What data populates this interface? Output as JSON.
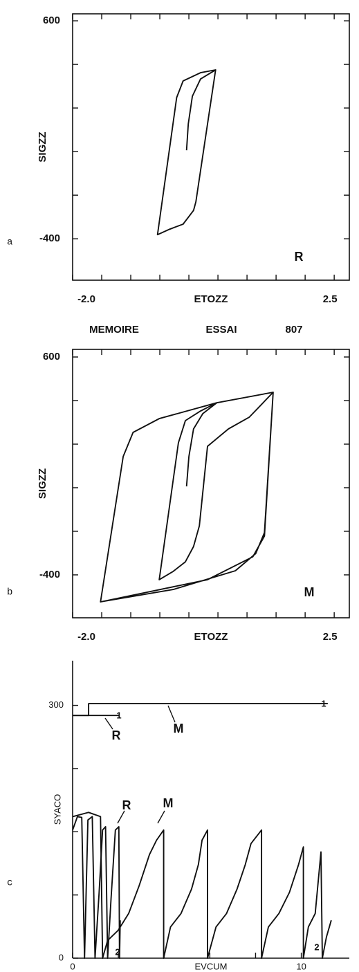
{
  "chart_data": [
    {
      "type": "line",
      "panel": "a",
      "y_label": "SIGZZ",
      "x_label": "ETOZZ",
      "xlim": [
        -2.0,
        2.76
      ],
      "ylim": [
        -590,
        632
      ],
      "xticks": [
        {
          "value": -2,
          "label": "-2.0"
        },
        2.5
      ],
      "x_minor_ticks": [
        -1.5,
        -1,
        -0.5,
        0,
        0.5,
        1,
        1.5,
        2
      ],
      "yticks": [
        -400,
        600
      ],
      "y_minor_ticks": [
        -200,
        0,
        200,
        400
      ],
      "annotations": [
        "R"
      ],
      "series": [
        {
          "color": "#111111",
          "x": [
            -0.04,
            -0.01,
            0.06,
            0.2,
            0.46,
            0.2,
            -0.1,
            -0.21,
            -0.54,
            -0.33,
            -0.1,
            0.08,
            0.12,
            0.46
          ],
          "values": [
            6,
            127,
            254,
            333,
            375,
            362,
            324,
            248,
            -381,
            -356,
            -333,
            -270,
            -230,
            375
          ]
        }
      ]
    },
    {
      "type": "line",
      "panel": "b",
      "title_parts": [
        "MEMOIRE",
        "ESSAI",
        "807"
      ],
      "y_label": "SIGZZ",
      "x_label": "ETOZZ",
      "xlim": [
        -2.0,
        2.76
      ],
      "ylim": [
        -597,
        635
      ],
      "xticks": [
        {
          "value": -2,
          "label": "-2.0"
        },
        2.5
      ],
      "x_minor_ticks": [
        -1.5,
        -1,
        -0.5,
        0,
        0.5,
        1,
        1.5,
        2
      ],
      "yticks": [
        -400,
        600
      ],
      "y_minor_ticks": [
        -200,
        0,
        200,
        400
      ],
      "annotations": [
        "M"
      ],
      "series": [
        {
          "color": "#111111",
          "x": [
            -0.04,
            0.0,
            0.08,
            0.24,
            0.48,
            0.2,
            -0.06,
            -0.18,
            -0.51,
            -0.27,
            -0.06,
            0.08,
            0.18,
            0.32,
            0.68,
            1.04,
            1.45,
            1.3,
            1.15,
            0.8,
            -0.27,
            -1.52,
            -1.13,
            -0.96,
            -0.51,
            0.48,
            1.45,
            1.3,
            1.1,
            0.32,
            -1.52
          ],
          "values": [
            6,
            143,
            270,
            340,
            390,
            352,
            308,
            206,
            -422,
            -384,
            -340,
            -270,
            -175,
            190,
            270,
            324,
            438,
            -206,
            -302,
            -381,
            -467,
            -524,
            143,
            254,
            317,
            390,
            438,
            -222,
            -317,
            -422,
            -524
          ]
        }
      ]
    },
    {
      "type": "line",
      "panel": "c",
      "y_label": "SYACO",
      "x_label": "EVCUM",
      "xlim": [
        0,
        12.1
      ],
      "ylim": [
        0,
        353
      ],
      "xticks": [
        0,
        10
      ],
      "x_minor_ticks": [
        2,
        4,
        6,
        8
      ],
      "yticks": [
        0,
        300
      ],
      "y_minor_ticks": [
        75,
        150,
        225
      ],
      "annotations": [
        "R",
        "M",
        "R",
        "M",
        "1",
        "1",
        "2",
        "2"
      ],
      "series": [
        {
          "color": "#111111",
          "x": [
            0,
            2.05
          ],
          "values": [
            288,
            288
          ]
        },
        {
          "color": "#111111",
          "x": [
            0,
            0.7,
            0.7,
            11.16
          ],
          "values": [
            288,
            288,
            302,
            302
          ]
        },
        {
          "color": "#111111",
          "x": [
            0,
            0.21,
            0.4,
            0.52,
            0.67,
            0.86,
            0.98,
            1.16,
            1.31,
            1.44,
            1.53,
            1.68,
            1.87,
            2.02,
            2.05,
            2.08
          ],
          "values": [
            152,
            168,
            167,
            0,
            164,
            168,
            0,
            78,
            152,
            156,
            0,
            70,
            152,
            156,
            0,
            45
          ]
        },
        {
          "color": "#111111",
          "x": [
            0,
            0.7,
            1.22,
            1.31,
            1.53,
            1.99,
            2.45,
            2.91,
            3.36,
            3.67,
            3.98,
            3.98,
            4.28,
            4.74,
            5.2,
            5.5,
            5.66,
            5.9,
            5.9,
            6.27,
            6.73,
            7.19,
            7.55,
            7.8,
            8.26,
            8.26,
            8.56,
            9.02,
            9.48,
            9.88,
            10.09,
            10.09,
            10.31,
            10.61,
            10.86,
            10.92,
            11.1,
            11.31
          ],
          "values": [
            168,
            173,
            168,
            0,
            21,
            33,
            53,
            86,
            123,
            140,
            152,
            0,
            37,
            53,
            82,
            111,
            140,
            152,
            0,
            37,
            53,
            82,
            111,
            136,
            152,
            0,
            37,
            53,
            78,
            111,
            132,
            0,
            37,
            53,
            126,
            0,
            25,
            45
          ]
        }
      ]
    }
  ]
}
